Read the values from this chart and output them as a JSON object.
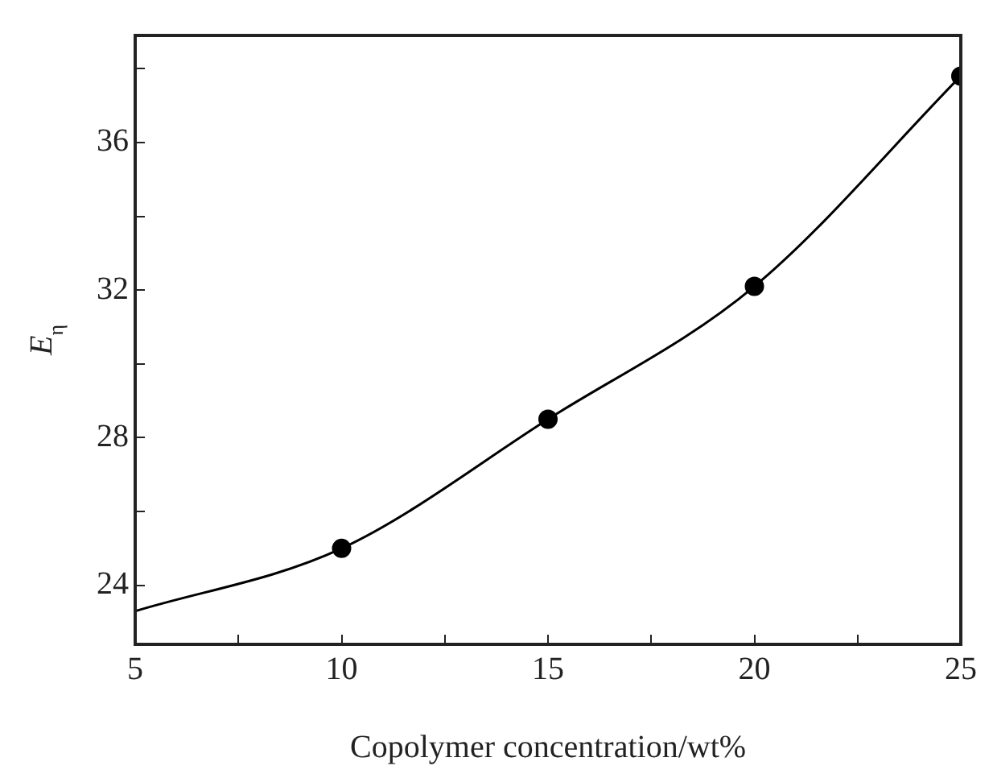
{
  "chart_data": {
    "type": "line",
    "xlabel": "Copolymer concentration/wt%",
    "ylabel": "E$_{η}$",
    "xlim": [
      5,
      25
    ],
    "xticks": [
      5,
      {
        "value": 7.5,
        "label": null
      },
      10,
      {
        "value": 12.5,
        "label": null
      },
      15,
      {
        "value": 17.5,
        "label": null
      },
      20,
      {
        "value": 22.5,
        "label": null
      },
      25
    ],
    "ylim": [
      22.4,
      38.9
    ],
    "yticks": [
      24,
      {
        "value": 26,
        "label": null
      },
      28,
      {
        "value": 30,
        "label": null
      },
      32,
      {
        "value": 34,
        "label": null
      },
      36,
      {
        "value": 38,
        "label": null
      }
    ],
    "grid": false,
    "legend": false,
    "series": [
      {
        "color": "#000000",
        "marker": "none",
        "x": [
          5,
          10,
          15,
          20,
          25
        ],
        "values": [
          23.3,
          25.0,
          28.5,
          32.1,
          37.8
        ]
      },
      {
        "type": "scatter",
        "color": "#000000",
        "marker": "circle",
        "x": [
          10,
          15,
          20,
          25
        ],
        "values": [
          25.0,
          28.5,
          32.1,
          37.8
        ]
      }
    ]
  }
}
